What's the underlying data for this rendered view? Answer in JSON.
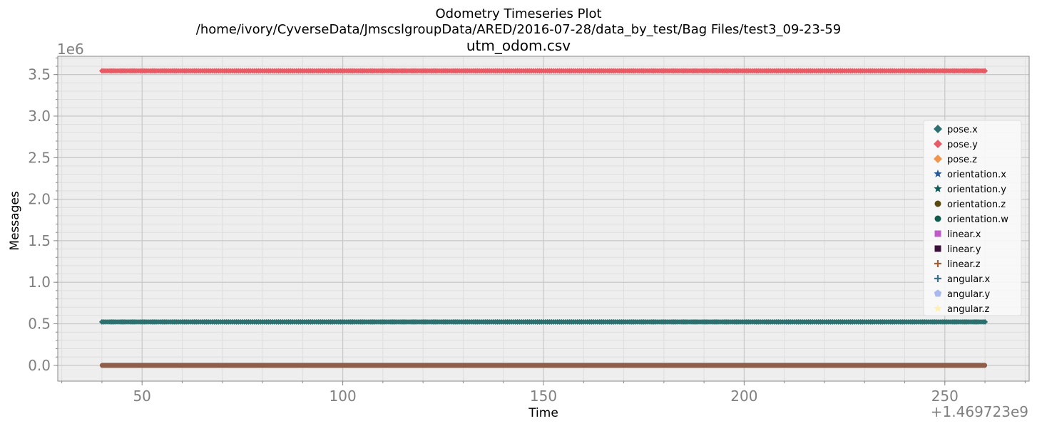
{
  "chart_data": {
    "type": "scatter",
    "title": "Odometry Timeseries Plot",
    "subtitle": "/home/ivory/CyverseData/JmscslgroupData/ARED/2016-07-28/data_by_test/Bag Files/test3_09-23-59",
    "filename": "utm_odom.csv",
    "xlabel": "Time",
    "ylabel": "Messages",
    "x_offset_label": "+1.469723e9",
    "y_multiplier_label": "1e6",
    "xlim": [
      29,
      271
    ],
    "ylim": [
      -0.19,
      3.72
    ],
    "x_ticks": [
      50,
      100,
      150,
      200,
      250
    ],
    "x_tick_labels": [
      "50",
      "100",
      "150",
      "200",
      "250"
    ],
    "y_ticks": [
      0.0,
      0.5,
      1.0,
      1.5,
      2.0,
      2.5,
      3.0,
      3.5
    ],
    "y_tick_labels": [
      "0.0",
      "0.5",
      "1.0",
      "1.5",
      "2.0",
      "2.5",
      "3.0",
      "3.5"
    ],
    "grid": true,
    "legend_position": "right",
    "x_range": [
      40,
      260
    ],
    "series": [
      {
        "name": "pose.x",
        "value": 0.523,
        "color": "#2d7070",
        "marker": "diamond"
      },
      {
        "name": "pose.y",
        "value": 3.544,
        "color": "#e85a64",
        "marker": "diamond"
      },
      {
        "name": "pose.z",
        "value": 0.0,
        "color": "#f0944e",
        "marker": "diamond"
      },
      {
        "name": "orientation.x",
        "value": 0.0,
        "color": "#2a5a9a",
        "marker": "star"
      },
      {
        "name": "orientation.y",
        "value": 0.0,
        "color": "#0d5c5c",
        "marker": "star"
      },
      {
        "name": "orientation.z",
        "value": 0.0,
        "color": "#5a4a10",
        "marker": "circle"
      },
      {
        "name": "orientation.w",
        "value": 0.0,
        "color": "#0d5c4c",
        "marker": "circle"
      },
      {
        "name": "linear.x",
        "value": 0.0,
        "color": "#c05ac8",
        "marker": "square"
      },
      {
        "name": "linear.y",
        "value": 0.0,
        "color": "#3a0f3a",
        "marker": "square"
      },
      {
        "name": "linear.z",
        "value": 0.0,
        "color": "#a0603a",
        "marker": "plus"
      },
      {
        "name": "angular.x",
        "value": 0.0,
        "color": "#3a6e8a",
        "marker": "plus"
      },
      {
        "name": "angular.y",
        "value": 0.0,
        "color": "#aab8f0",
        "marker": "pentagon"
      },
      {
        "name": "angular.z",
        "value": 0.0,
        "color": "#fff0b0",
        "marker": "star"
      }
    ],
    "bottom_band_color": "#8e5e4a"
  }
}
